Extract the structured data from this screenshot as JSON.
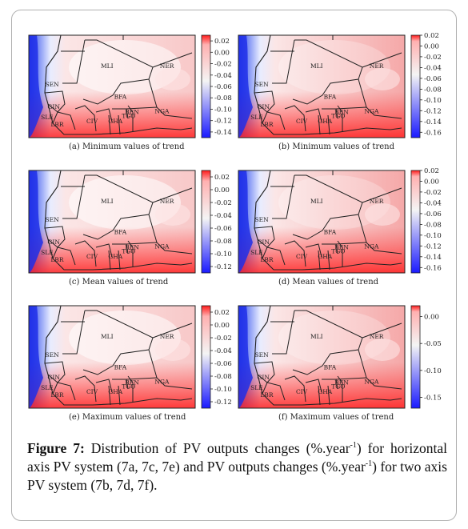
{
  "figure": {
    "label": "Figure 7:",
    "text_1": " Distribution of PV outputs changes (%.year",
    "sup_1": "-1",
    "text_2": ") for horizontal axis PV system (7a, 7c, 7e) and PV outputs changes (%.year",
    "sup_2": "-1",
    "text_3": ") for two axis PV system (7b, 7d, 7f)."
  },
  "panels": [
    {
      "id": "a",
      "caption": "(a) Minimum values of trend",
      "colorbar_ticks": [
        "0.02",
        "0.00",
        "-0.02",
        "-0.04",
        "-0.06",
        "-0.08",
        "-0.10",
        "-0.12",
        "-0.14"
      ],
      "vmin": -0.15,
      "vmax": 0.03
    },
    {
      "id": "b",
      "caption": "(b) Minimum values of trend",
      "colorbar_ticks": [
        "0.02",
        "0.00",
        "-0.02",
        "-0.04",
        "-0.06",
        "-0.08",
        "-0.10",
        "-0.12",
        "-0.14",
        "-0.16"
      ],
      "vmin": -0.17,
      "vmax": 0.02
    },
    {
      "id": "c",
      "caption": "(c) Mean values of trend",
      "colorbar_ticks": [
        "0.02",
        "0.00",
        "-0.02",
        "-0.04",
        "-0.06",
        "-0.08",
        "-0.10",
        "-0.12"
      ],
      "vmin": -0.13,
      "vmax": 0.03
    },
    {
      "id": "d",
      "caption": "(d) Mean values of trend",
      "colorbar_ticks": [
        "0.02",
        "0.00",
        "-0.02",
        "-0.04",
        "-0.06",
        "-0.08",
        "-0.10",
        "-0.12",
        "-0.14",
        "-0.16"
      ],
      "vmin": -0.17,
      "vmax": 0.02
    },
    {
      "id": "e",
      "caption": "(e) Maximum values of trend",
      "colorbar_ticks": [
        "0.02",
        "0.00",
        "-0.02",
        "-0.04",
        "-0.06",
        "-0.08",
        "-0.10",
        "-0.12"
      ],
      "vmin": -0.13,
      "vmax": 0.03
    },
    {
      "id": "f",
      "caption": "(f) Maximum values of trend",
      "colorbar_ticks": [
        "0.00",
        "-0.05",
        "-0.10",
        "-0.15"
      ],
      "vmin": -0.17,
      "vmax": 0.02
    }
  ],
  "country_labels": [
    "MLI",
    "NER",
    "SEN",
    "BFA",
    "GIN",
    "NGA",
    "SLE",
    "CIV",
    "GHA",
    "LBR",
    "BEN",
    "TGO"
  ],
  "colormap": {
    "low": "#1a1aff",
    "mid": "#f4f4f4",
    "high": "#ff1a1a"
  }
}
